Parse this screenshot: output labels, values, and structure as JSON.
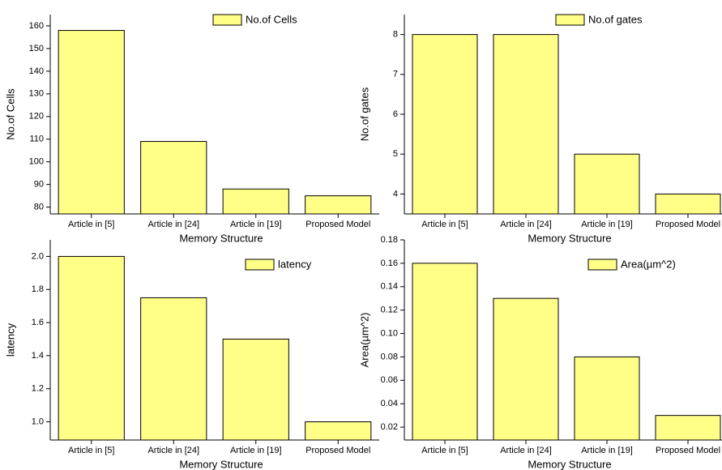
{
  "chart_data": [
    {
      "type": "bar",
      "categories": [
        "Article in [5]",
        "Article in [24]",
        "Article in [19]",
        "Proposed Model"
      ],
      "series": [
        {
          "name": "No.of Cells",
          "color": "#ffff88",
          "values": [
            158,
            109,
            88,
            85
          ]
        }
      ],
      "x_label": "Memory Structure",
      "y_label": "No.of Cells",
      "ylim": [
        77,
        165
      ],
      "yticks": [
        80,
        90,
        100,
        110,
        120,
        130,
        140,
        150,
        160
      ],
      "legend": "upper right"
    },
    {
      "type": "bar",
      "categories": [
        "Article in [5]",
        "Article in [24]",
        "Article in [19]",
        "Proposed Model"
      ],
      "series": [
        {
          "name": "No.of gates",
          "color": "#ffff88",
          "values": [
            8,
            8,
            5,
            4
          ]
        }
      ],
      "x_label": "Memory Structure",
      "y_label": "No.of gates",
      "ylim": [
        3.5,
        8.5
      ],
      "yticks": [
        4,
        5,
        6,
        7,
        8
      ],
      "legend": "upper right"
    },
    {
      "type": "bar",
      "categories": [
        "Article in [5]",
        "Article in [24]",
        "Article in [19]",
        "Proposed Model"
      ],
      "series": [
        {
          "name": "latency",
          "color": "#ffff88",
          "values": [
            2.0,
            1.75,
            1.5,
            1.0
          ]
        }
      ],
      "x_label": "Memory Structure",
      "y_label": "latency",
      "ylim": [
        0.89,
        2.1
      ],
      "yticks": [
        {
          "value": 1,
          "label": "1.0"
        },
        1.2,
        1.4,
        1.6,
        1.8,
        {
          "value": 2,
          "label": "2.0"
        }
      ],
      "legend": "upper right"
    },
    {
      "type": "bar",
      "categories": [
        "Article in [5]",
        "Article in [24]",
        "Article in [19]",
        "Proposed Model"
      ],
      "series": [
        {
          "name": "Area(µm^2)",
          "color": "#ffff88",
          "values": [
            0.16,
            0.13,
            0.08,
            0.03
          ]
        }
      ],
      "x_label": "Memory Structure",
      "y_label": "Area(µm^2)",
      "ylim": [
        0.009,
        0.18
      ],
      "yticks": [
        0.02,
        0.04,
        0.06,
        0.08,
        {
          "value": 0.1,
          "label": "0.10"
        },
        0.12,
        0.14,
        0.16,
        0.18
      ],
      "legend": "upper right"
    }
  ]
}
